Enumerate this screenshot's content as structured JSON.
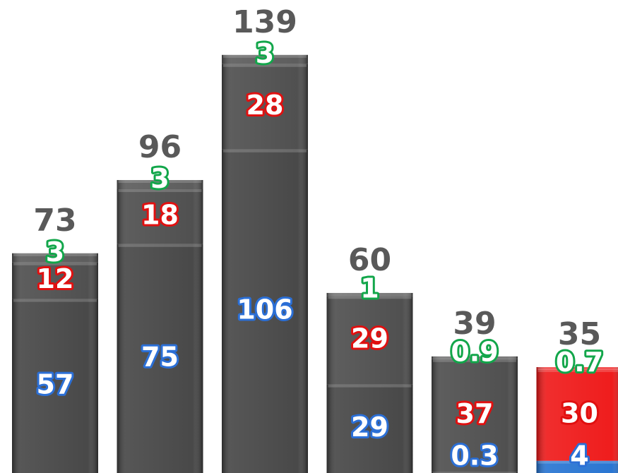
{
  "chart_data": {
    "type": "stacked_bar",
    "ylim": [
      0,
      155
    ],
    "totals": [
      73,
      96,
      139,
      60,
      39,
      35
    ],
    "total_color": "#595959",
    "series": [
      {
        "values": [
          57,
          75,
          106,
          29,
          0.3,
          4
        ],
        "label_color": "#2b6fd6",
        "colors": [
          "#3f3f3f",
          "#3f3f3f",
          "#3f3f3f",
          "#3f3f3f",
          "#3f3f3f",
          "#1f6fd0"
        ]
      },
      {
        "values": [
          12,
          18,
          28,
          29,
          37,
          30
        ],
        "label_color": "#e01010",
        "colors": [
          "#474747",
          "#474747",
          "#474747",
          "#474747",
          "#474747",
          "#ee1111"
        ]
      },
      {
        "values": [
          3,
          3,
          3,
          1,
          0.9,
          0.7
        ],
        "label_color": "#12a64a",
        "colors": [
          "#555555",
          "#555555",
          "#555555",
          "#555555",
          "#555555",
          "#f02020"
        ]
      }
    ]
  }
}
